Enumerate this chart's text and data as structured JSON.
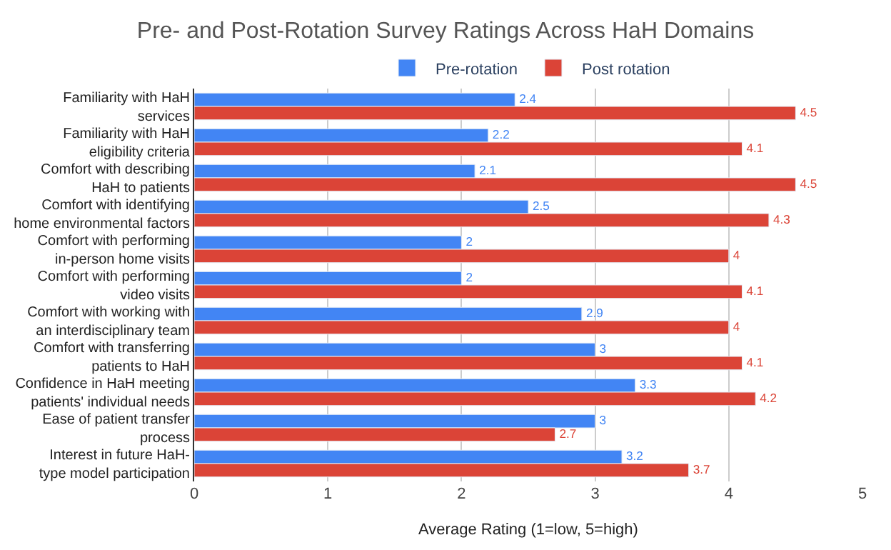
{
  "chart_data": {
    "type": "bar",
    "orientation": "horizontal",
    "title": "Pre- and Post-Rotation Survey Ratings Across HaH Domains",
    "xlabel": "Average Rating (1=low, 5=high)",
    "categories": [
      "Familiarity with HaH services",
      "Familiarity with HaH eligibility criteria",
      "Comfort with describing HaH to patients",
      "Comfort with identifying home environmental factors",
      "Comfort with performing in-person home visits",
      "Comfort with performing video visits",
      "Comfort with working with an interdisciplinary team",
      "Comfort with transferring patients to HaH",
      "Confidence in HaH meeting patients' individual needs",
      "Ease of patient transfer process",
      "Interest in future HaH-type model participation"
    ],
    "series": [
      {
        "name": "Pre-rotation",
        "color": "#4285f4",
        "values": [
          2.4,
          2.2,
          2.1,
          2.5,
          2,
          2,
          2.9,
          3,
          3.3,
          3,
          3.2
        ]
      },
      {
        "name": "Post rotation",
        "color": "#db4437",
        "values": [
          4.5,
          4.1,
          4.5,
          4.3,
          4,
          4.1,
          4,
          4.1,
          4.2,
          2.7,
          3.7
        ]
      }
    ],
    "xlim": [
      0,
      5
    ],
    "xticks": [
      0,
      1,
      2,
      3,
      4,
      5
    ],
    "grid": "x",
    "legend": "top",
    "data_labels": true
  }
}
